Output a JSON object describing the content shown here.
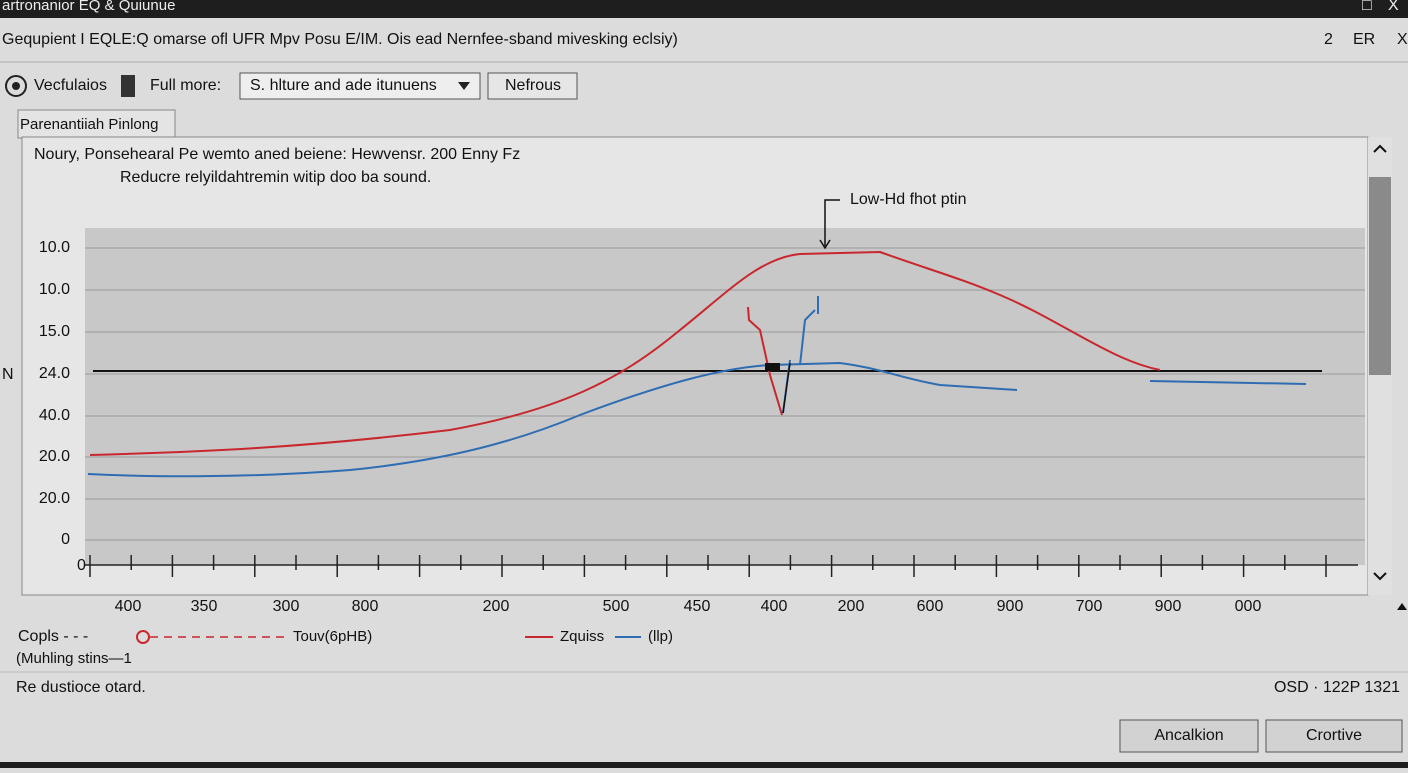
{
  "window": {
    "title": "artronanior EQ & Quiunue",
    "controls": [
      "□",
      "X"
    ]
  },
  "header": {
    "text": "Gequpient I EQLE:Q omarse ofl UFR Mpv Posu E/IM. Ois ead Nernfee-sband mivesking eclsiy)",
    "right": [
      "2",
      "ER",
      "X"
    ]
  },
  "toolbar": {
    "label1": "Vecfulaios",
    "label2": "Full more:",
    "dropdown": "S. hlture and ade itunuens",
    "button": "Nefrous"
  },
  "tab": "Parenantiiah Pinlong",
  "panel": {
    "line1": "Noury, Ponsehearal Pe wemto aned beiene: Hewvensr. 200 Enny Fz",
    "line2": "Reducre relyildahtremin witip doo ba sound.",
    "annotation": "Low-Hd fhot ptin",
    "y_axis_letter": "N",
    "origin": "0",
    "y_labels": [
      "10.0",
      "10.0",
      "15.0",
      "24.0",
      "40.0",
      "20.0",
      "20.0",
      "0"
    ],
    "x_labels": [
      "400",
      "350",
      "300",
      "800",
      "200",
      "500",
      "450",
      "400",
      "200",
      "600",
      "900",
      "700",
      "900",
      "000"
    ]
  },
  "legend": {
    "item1": "Copls - - -",
    "item2": "Touv(6pHB)",
    "item3": "Zquiss",
    "item4": "(llp)",
    "line2": "(Muhling stins—1"
  },
  "status": {
    "left": "Re dustioce otard.",
    "right": "OSD · 122P 1321"
  },
  "buttons": [
    "Ancalkion",
    "Crortive"
  ]
}
